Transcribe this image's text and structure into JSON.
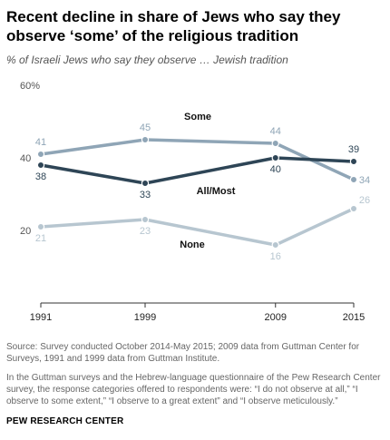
{
  "header": {
    "title": "Recent decline in share of Jews who say they observe ‘some’ of the religious tradition",
    "subtitle": "% of Israeli Jews who say they observe … Jewish tradition"
  },
  "footer": {
    "source": "Source: Survey conducted October 2014-May 2015; 2009 data from Guttman Center for Surveys, 1991 and 1999 data from Guttman Institute.",
    "note": "In the Guttman surveys and the Hebrew-language questionnaire of the Pew Research Center survey, the response categories offered to respondents were: “I do not observe at all,” “I observe to some extent,” “I observe to a great extent” and “I observe meticulously.”",
    "brand": "PEW RESEARCH CENTER"
  },
  "chart_data": {
    "type": "line",
    "x": [
      1991,
      1999,
      2009,
      2015
    ],
    "x_tick_labels": [
      "1991",
      "1999",
      "2009",
      "2015"
    ],
    "ylim": [
      0,
      60
    ],
    "y_ticks": [
      0,
      20,
      40,
      60
    ],
    "y_tick_labels": [
      "",
      "20",
      "40",
      "60%"
    ],
    "grid": false,
    "series": [
      {
        "name": "Some",
        "values": [
          41,
          45,
          44,
          34
        ],
        "labels": [
          "41",
          "45",
          "44",
          "34"
        ],
        "color": "#8fa5b6"
      },
      {
        "name": "All/Most",
        "values": [
          38,
          33,
          40,
          39
        ],
        "labels": [
          "38",
          "33",
          "40",
          "39"
        ],
        "color": "#2e4556"
      },
      {
        "name": "None",
        "values": [
          21,
          23,
          16,
          26
        ],
        "labels": [
          "21",
          "23",
          "16",
          "26"
        ],
        "color": "#b7c6d0"
      }
    ]
  }
}
